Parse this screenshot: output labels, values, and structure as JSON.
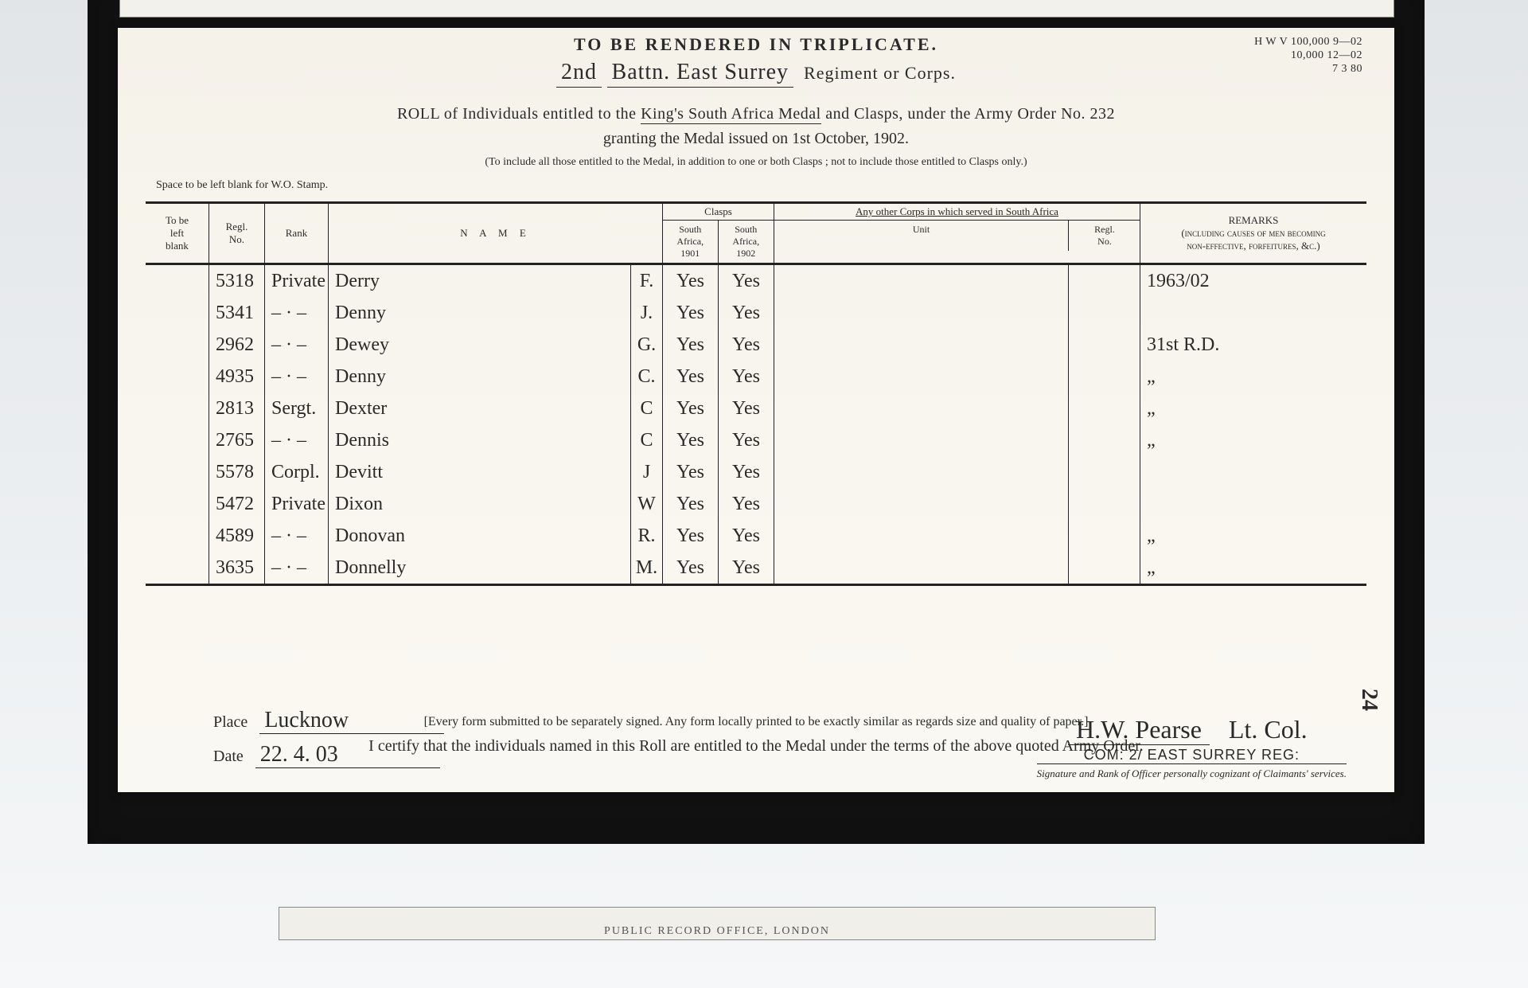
{
  "colors": {
    "page_bg": "#e8ebed",
    "frame": "#111111",
    "paper": "#f6f3ec",
    "ink": "#2a2a2a",
    "rule": "#222222"
  },
  "ref": {
    "l1": "H W V  100,000  9—02",
    "l2": "10,000 12—02",
    "l3": "7 3 80"
  },
  "header": {
    "triplicate": "TO BE RENDERED IN TRIPLICATE.",
    "battn_prefix": "2nd",
    "battn": "Battn.  East Surrey",
    "regiment_suffix": "Regiment or Corps.",
    "roll_line_a": "ROLL of Individuals entitled to the ",
    "medal": "King's South Africa Medal",
    "roll_line_b": " and Clasps, under the Army Order No. 232",
    "granting": "granting the Medal issued on 1st October, 1902.",
    "include_note": "(To include all those entitled to the Medal, in addition to one or both Clasps ; not to include those entitled to Clasps only.)",
    "wo_note": "Space to be left blank for W.O. Stamp."
  },
  "columns": {
    "blank": "To be\nleft\nblank",
    "regl": "Regl.\nNo.",
    "rank": "Rank",
    "name": "N A M E",
    "clasps": "Clasps",
    "sa1901": "South\nAfrica,\n1901",
    "sa1902": "South\nAfrica,\n1902",
    "other": "Any other Corps in which served in South Africa",
    "other_unit": "Unit",
    "other_regl": "Regl.\nNo.",
    "remarks": "REMARKS\n(including causes of men becoming\nnon-effective, forfeitures, &c.)"
  },
  "rows": [
    {
      "regl": "5318",
      "rank": "Private",
      "name": "Derry",
      "init": "F.",
      "c1": "Yes",
      "c2": "Yes",
      "unit": "",
      "ureg": "",
      "rem": "1963/02"
    },
    {
      "regl": "5341",
      "rank": "– · –",
      "name": "Denny",
      "init": "J.",
      "c1": "Yes",
      "c2": "Yes",
      "unit": "",
      "ureg": "",
      "rem": ""
    },
    {
      "regl": "2962",
      "rank": "– · –",
      "name": "Dewey",
      "init": "G.",
      "c1": "Yes",
      "c2": "Yes",
      "unit": "",
      "ureg": "",
      "rem": "31st R.D."
    },
    {
      "regl": "4935",
      "rank": "– · –",
      "name": "Denny",
      "init": "C.",
      "c1": "Yes",
      "c2": "Yes",
      "unit": "",
      "ureg": "",
      "rem": "„"
    },
    {
      "regl": "2813",
      "rank": "Sergt.",
      "name": "Dexter",
      "init": "C",
      "c1": "Yes",
      "c2": "Yes",
      "unit": "",
      "ureg": "",
      "rem": "„"
    },
    {
      "regl": "2765",
      "rank": "– · –",
      "name": "Dennis",
      "init": "C",
      "c1": "Yes",
      "c2": "Yes",
      "unit": "",
      "ureg": "",
      "rem": "„"
    },
    {
      "regl": "5578",
      "rank": "Corpl.",
      "name": "Devitt",
      "init": "J",
      "c1": "Yes",
      "c2": "Yes",
      "unit": "",
      "ureg": "",
      "rem": ""
    },
    {
      "regl": "5472",
      "rank": "Private",
      "name": "Dixon",
      "init": "W",
      "c1": "Yes",
      "c2": "Yes",
      "unit": "",
      "ureg": "",
      "rem": ""
    },
    {
      "regl": "4589",
      "rank": "– · –",
      "name": "Donovan",
      "init": "R.",
      "c1": "Yes",
      "c2": "Yes",
      "unit": "",
      "ureg": "",
      "rem": "„"
    },
    {
      "regl": "3635",
      "rank": "– · –",
      "name": "Donnelly",
      "init": "M.",
      "c1": "Yes",
      "c2": "Yes",
      "unit": "",
      "ureg": "",
      "rem": "„"
    }
  ],
  "footer": {
    "form_note": "[Every form submitted to be separately signed.   Any form locally printed to be exactly similar as regards size and quality of paper.]",
    "certify": "I certify that the individuals named in this Roll are entitled to the Medal under the terms of the above quoted Army Order.",
    "place_label": "Place",
    "place": "Lucknow",
    "date_label": "Date",
    "date": "22. 4. 03",
    "signature": "H.W. Pearse",
    "sig_rank": "Lt. Col.",
    "stamp": "COM: 2/ EAST SURREY REG:",
    "sig_note": "Signature and Rank of Officer personally cognizant of Claimants' services.",
    "page_no": "24"
  },
  "bottom_fragment": "PUBLIC  RECORD  OFFICE,  LONDON"
}
